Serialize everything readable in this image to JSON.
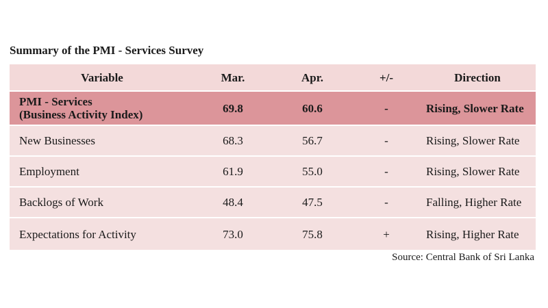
{
  "title": "Summary of the PMI - Services Survey",
  "columns": [
    "Variable",
    "Mar.",
    "Apr.",
    "+/-",
    "Direction"
  ],
  "rows": [
    {
      "variable": "PMI - Services",
      "variable_sub": "(Business Activity Index)",
      "mar": "69.8",
      "apr": "60.6",
      "change": "-",
      "direction": "Rising, Slower Rate"
    },
    {
      "variable": "New Businesses",
      "mar": "68.3",
      "apr": "56.7",
      "change": "-",
      "direction": "Rising, Slower Rate"
    },
    {
      "variable": "Employment",
      "mar": "61.9",
      "apr": "55.0",
      "change": "-",
      "direction": "Rising, Slower Rate"
    },
    {
      "variable": "Backlogs of Work",
      "mar": "48.4",
      "apr": "47.5",
      "change": "-",
      "direction": "Falling, Higher Rate"
    },
    {
      "variable": "Expectations for Activity",
      "mar": "73.0",
      "apr": "75.8",
      "change": "+",
      "direction": "Rising, Higher Rate"
    }
  ],
  "source": "Source: Central Bank of Sri Lanka",
  "colors": {
    "header_bg": "#f3d9d9",
    "highlight_bg": "#dc959a",
    "row_bg": "#f4e0e0"
  }
}
